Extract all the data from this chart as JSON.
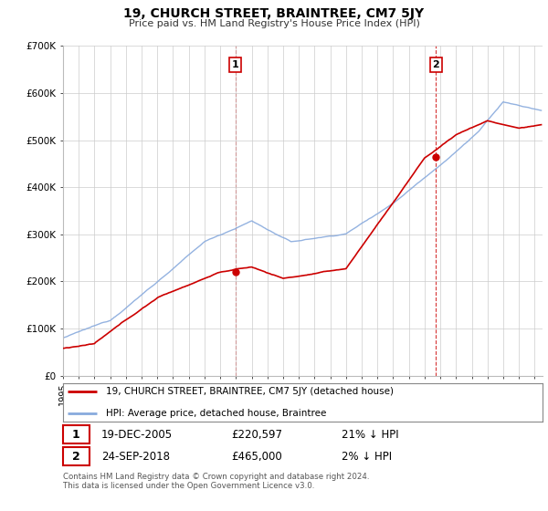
{
  "title": "19, CHURCH STREET, BRAINTREE, CM7 5JY",
  "subtitle": "Price paid vs. HM Land Registry's House Price Index (HPI)",
  "hpi_color": "#88aadd",
  "price_color": "#cc0000",
  "background_color": "#ffffff",
  "grid_color": "#cccccc",
  "ylim": [
    0,
    700000
  ],
  "yticks": [
    0,
    100000,
    200000,
    300000,
    400000,
    500000,
    600000,
    700000
  ],
  "ytick_labels": [
    "£0",
    "£100K",
    "£200K",
    "£300K",
    "£400K",
    "£500K",
    "£600K",
    "£700K"
  ],
  "sale1_x": 2005.97,
  "sale1_y": 220597,
  "sale2_x": 2018.73,
  "sale2_y": 465000,
  "sale1_date": "19-DEC-2005",
  "sale1_price": "£220,597",
  "sale1_hpi": "21% ↓ HPI",
  "sale2_date": "24-SEP-2018",
  "sale2_price": "£465,000",
  "sale2_hpi": "2% ↓ HPI",
  "legend_line1": "19, CHURCH STREET, BRAINTREE, CM7 5JY (detached house)",
  "legend_line2": "HPI: Average price, detached house, Braintree",
  "footer": "Contains HM Land Registry data © Crown copyright and database right 2024.\nThis data is licensed under the Open Government Licence v3.0.",
  "xlim_start": 1995,
  "xlim_end": 2025.5
}
